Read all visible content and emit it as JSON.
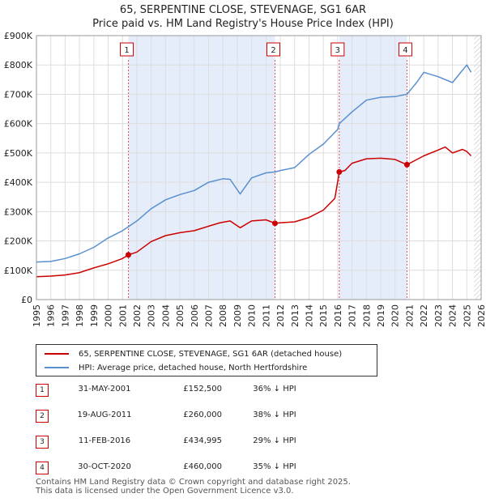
{
  "title": {
    "line1": "65, SERPENTINE CLOSE, STEVENAGE, SG1 6AR",
    "line2": "Price paid vs. HM Land Registry's House Price Index (HPI)"
  },
  "colors": {
    "price": "#cc0000",
    "hpi": "#5a8fd0",
    "shade": "#dce6f8",
    "grid": "#dddddd",
    "marker_border": "#cc0000"
  },
  "chart_data": {
    "type": "line",
    "title": "Price paid vs. HM Land Registry's House Price Index (HPI)",
    "xlabel": "",
    "ylabel": "",
    "xlim": [
      1995,
      2026
    ],
    "ylim": [
      0,
      900000
    ],
    "x_ticks": [
      "1995",
      "1996",
      "1997",
      "1998",
      "1999",
      "2000",
      "2001",
      "2002",
      "2003",
      "2004",
      "2005",
      "2006",
      "2007",
      "2008",
      "2009",
      "2010",
      "2011",
      "2012",
      "2013",
      "2014",
      "2015",
      "2016",
      "2017",
      "2018",
      "2019",
      "2020",
      "2021",
      "2022",
      "2023",
      "2024",
      "2025",
      "2026"
    ],
    "y_ticks": [
      {
        "value": 0,
        "label": "£0"
      },
      {
        "value": 100000,
        "label": "£100K"
      },
      {
        "value": 200000,
        "label": "£200K"
      },
      {
        "value": 300000,
        "label": "£300K"
      },
      {
        "value": 400000,
        "label": "£400K"
      },
      {
        "value": 500000,
        "label": "£500K"
      },
      {
        "value": 600000,
        "label": "£600K"
      },
      {
        "value": 700000,
        "label": "£700K"
      },
      {
        "value": 800000,
        "label": "£800K"
      },
      {
        "value": 900000,
        "label": "£900K"
      }
    ],
    "series": [
      {
        "name": "65, SERPENTINE CLOSE, STEVENAGE, SG1 6AR (detached house)",
        "color": "#cc0000",
        "x": [
          1995.0,
          1996.0,
          1997.0,
          1998.0,
          1999.0,
          2000.0,
          2001.0,
          2001.41,
          2002.0,
          2003.0,
          2004.0,
          2005.0,
          2006.0,
          2007.0,
          2007.8,
          2008.5,
          2009.2,
          2010.0,
          2011.0,
          2011.63,
          2012.0,
          2013.0,
          2014.0,
          2015.0,
          2015.8,
          2016.11,
          2016.5,
          2017.0,
          2018.0,
          2019.0,
          2020.0,
          2020.83,
          2021.3,
          2022.0,
          2023.0,
          2023.5,
          2024.0,
          2024.7,
          2025.0,
          2025.3
        ],
        "values": [
          78000,
          80000,
          84000,
          92000,
          108000,
          122000,
          140000,
          152500,
          162000,
          198000,
          218000,
          228000,
          235000,
          250000,
          262000,
          268000,
          245000,
          268000,
          272000,
          260000,
          262000,
          265000,
          280000,
          305000,
          345000,
          434995,
          440000,
          465000,
          480000,
          482000,
          478000,
          460000,
          472000,
          490000,
          510000,
          520000,
          500000,
          512000,
          505000,
          490000
        ]
      },
      {
        "name": "HPI: Average price, detached house, North Hertfordshire",
        "color": "#5a8fd0",
        "x": [
          1995.0,
          1996.0,
          1997.0,
          1998.0,
          1999.0,
          2000.0,
          2001.0,
          2002.0,
          2003.0,
          2004.0,
          2005.0,
          2006.0,
          2007.0,
          2008.0,
          2008.5,
          2009.2,
          2010.0,
          2011.0,
          2011.63,
          2012.0,
          2013.0,
          2014.0,
          2015.0,
          2016.0,
          2016.11,
          2017.0,
          2018.0,
          2019.0,
          2020.0,
          2020.83,
          2021.5,
          2022.0,
          2023.0,
          2024.0,
          2024.5,
          2025.0,
          2025.3
        ],
        "values": [
          128000,
          130000,
          140000,
          156000,
          178000,
          210000,
          235000,
          268000,
          310000,
          340000,
          358000,
          372000,
          400000,
          412000,
          410000,
          360000,
          415000,
          432000,
          435000,
          440000,
          450000,
          495000,
          530000,
          580000,
          600000,
          640000,
          680000,
          690000,
          692000,
          700000,
          740000,
          775000,
          760000,
          740000,
          770000,
          800000,
          775000
        ]
      }
    ],
    "shaded_periods": [
      [
        2001.41,
        2011.63
      ],
      [
        2016.11,
        2020.83
      ]
    ],
    "transactions": [
      {
        "id": "1",
        "x": 2001.41,
        "value": 152500
      },
      {
        "id": "2",
        "x": 2011.63,
        "value": 260000
      },
      {
        "id": "3",
        "x": 2016.11,
        "value": 434995
      },
      {
        "id": "4",
        "x": 2020.83,
        "value": 460000
      }
    ],
    "legend_position": "bottom"
  },
  "legend": {
    "price_label": "65, SERPENTINE CLOSE, STEVENAGE, SG1 6AR (detached house)",
    "hpi_label": "HPI: Average price, detached house, North Hertfordshire"
  },
  "table": [
    {
      "id": "1",
      "date": "31-MAY-2001",
      "price": "£152,500",
      "hpi": "36% ↓ HPI"
    },
    {
      "id": "2",
      "date": "19-AUG-2011",
      "price": "£260,000",
      "hpi": "38% ↓ HPI"
    },
    {
      "id": "3",
      "date": "11-FEB-2016",
      "price": "£434,995",
      "hpi": "29% ↓ HPI"
    },
    {
      "id": "4",
      "date": "30-OCT-2020",
      "price": "£460,000",
      "hpi": "35% ↓ HPI"
    }
  ],
  "footer": {
    "line1": "Contains HM Land Registry data © Crown copyright and database right 2025.",
    "line2": "This data is licensed under the Open Government Licence v3.0."
  }
}
